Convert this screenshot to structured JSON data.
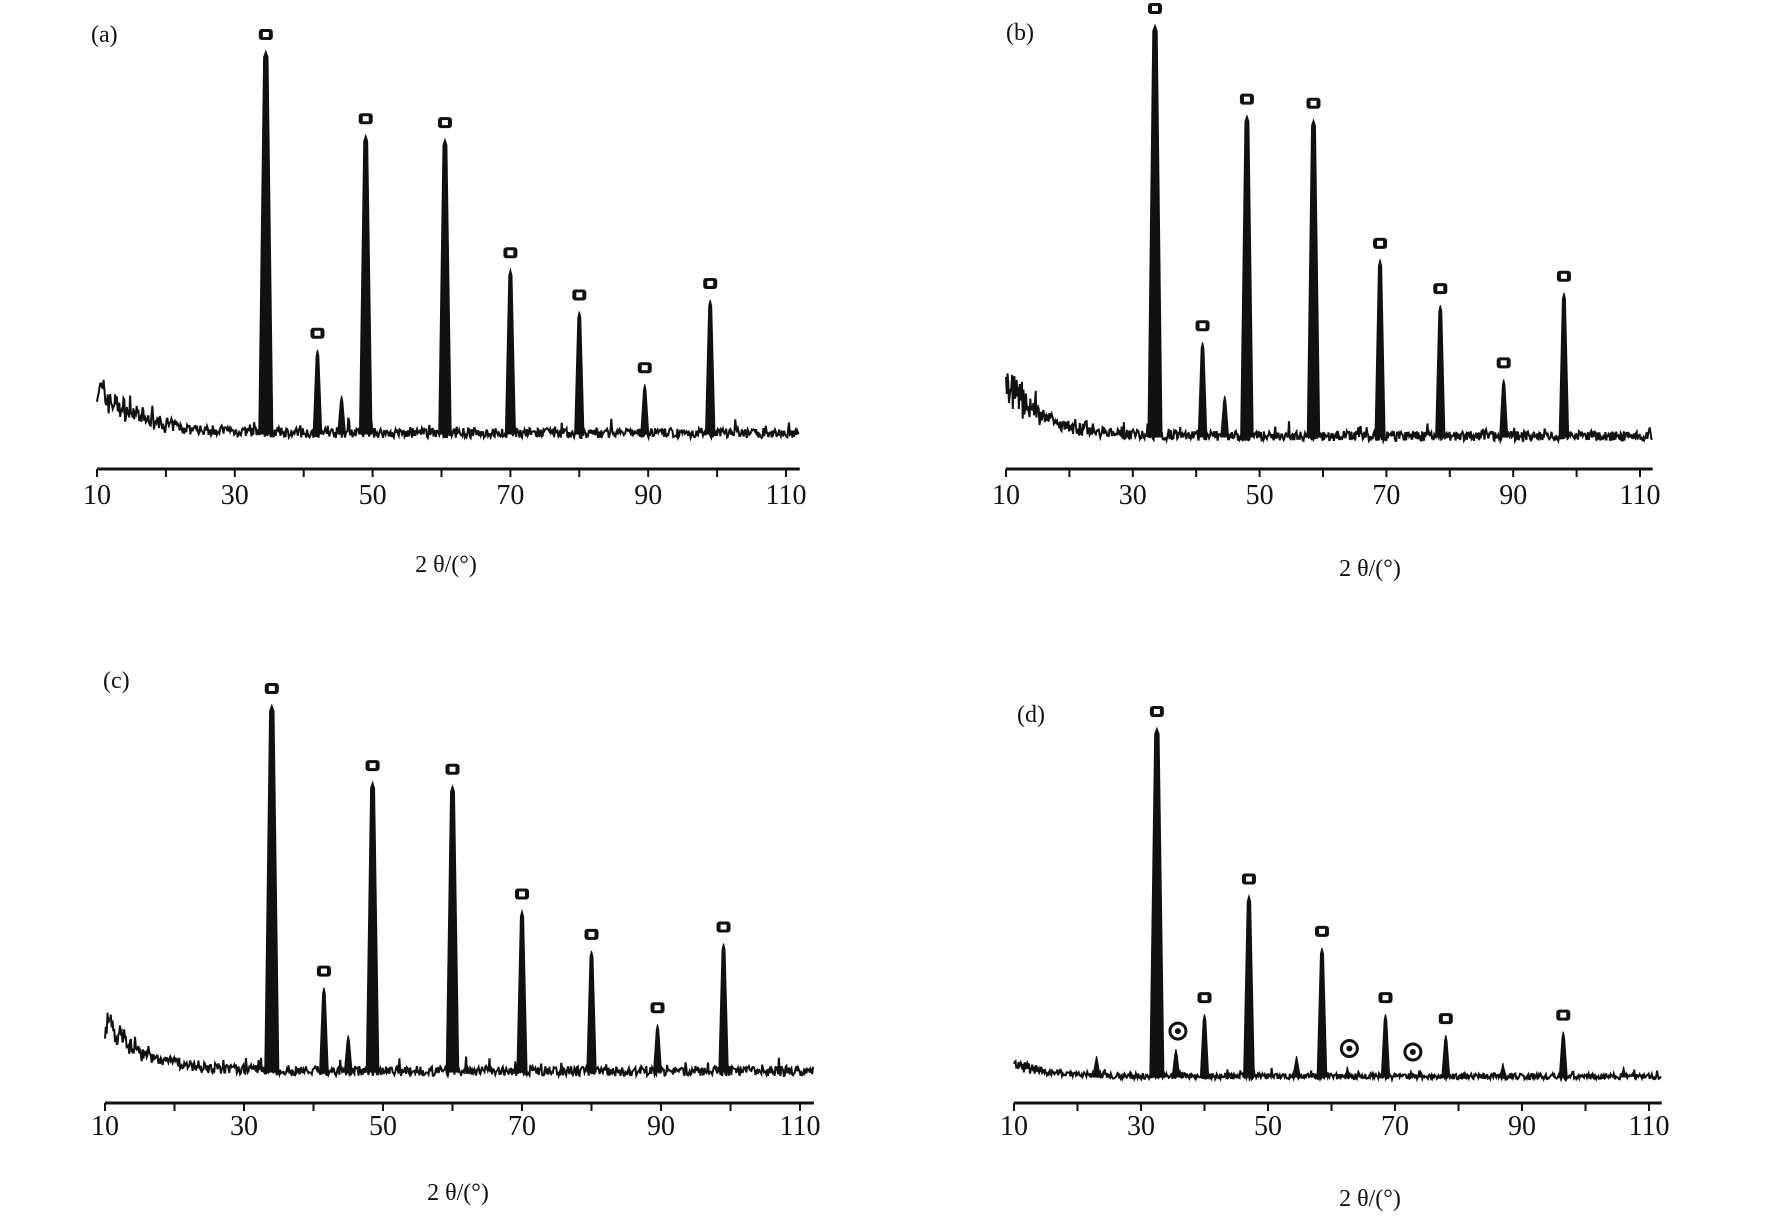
{
  "chart_data": [
    {
      "type": "line",
      "panel_label": "(a)",
      "xlabel": "2 θ/(°)",
      "ylabel": "",
      "xlim": [
        10,
        112
      ],
      "x_ticks": [
        "10",
        "30",
        "50",
        "70",
        "90",
        "110"
      ],
      "y_units": "relative intensity (no axis shown)",
      "peaks": [
        {
          "x": 34.5,
          "y": 100,
          "marker": "square"
        },
        {
          "x": 42,
          "y": 22,
          "marker": "square"
        },
        {
          "x": 45.5,
          "y": 10,
          "marker": "none"
        },
        {
          "x": 49,
          "y": 78,
          "marker": "square"
        },
        {
          "x": 60.5,
          "y": 77,
          "marker": "square"
        },
        {
          "x": 70,
          "y": 43,
          "marker": "square"
        },
        {
          "x": 80,
          "y": 32,
          "marker": "square"
        },
        {
          "x": 89.5,
          "y": 13,
          "marker": "square"
        },
        {
          "x": 99,
          "y": 35,
          "marker": "square"
        }
      ]
    },
    {
      "type": "line",
      "panel_label": "(b)",
      "xlabel": "2 θ/(°)",
      "ylabel": "",
      "xlim": [
        10,
        112
      ],
      "x_ticks": [
        "10",
        "30",
        "50",
        "70",
        "90",
        "110"
      ],
      "y_units": "relative intensity (no axis shown)",
      "peaks": [
        {
          "x": 33.5,
          "y": 100,
          "marker": "square"
        },
        {
          "x": 41,
          "y": 23,
          "marker": "square"
        },
        {
          "x": 44.5,
          "y": 10,
          "marker": "none"
        },
        {
          "x": 48,
          "y": 78,
          "marker": "square"
        },
        {
          "x": 58.5,
          "y": 77,
          "marker": "square"
        },
        {
          "x": 69,
          "y": 43,
          "marker": "square"
        },
        {
          "x": 78.5,
          "y": 32,
          "marker": "square"
        },
        {
          "x": 88.5,
          "y": 14,
          "marker": "square"
        },
        {
          "x": 98,
          "y": 35,
          "marker": "square"
        }
      ]
    },
    {
      "type": "line",
      "panel_label": "(c)",
      "xlabel": "2 θ/(°)",
      "ylabel": "",
      "xlim": [
        10,
        112
      ],
      "x_ticks": [
        "10",
        "30",
        "50",
        "70",
        "90",
        "110"
      ],
      "y_units": "relative intensity (no axis shown)",
      "peaks": [
        {
          "x": 34,
          "y": 100,
          "marker": "square"
        },
        {
          "x": 41.5,
          "y": 23,
          "marker": "square"
        },
        {
          "x": 45,
          "y": 10,
          "marker": "none"
        },
        {
          "x": 48.5,
          "y": 79,
          "marker": "square"
        },
        {
          "x": 60,
          "y": 78,
          "marker": "square"
        },
        {
          "x": 70,
          "y": 44,
          "marker": "square"
        },
        {
          "x": 80,
          "y": 33,
          "marker": "square"
        },
        {
          "x": 89.5,
          "y": 13,
          "marker": "square"
        },
        {
          "x": 99,
          "y": 35,
          "marker": "square"
        }
      ]
    },
    {
      "type": "line",
      "panel_label": "(d)",
      "xlabel": "2 θ/(°)",
      "ylabel": "",
      "xlim": [
        10,
        112
      ],
      "x_ticks": [
        "10",
        "30",
        "50",
        "70",
        "90",
        "110"
      ],
      "y_units": "relative intensity (no axis shown)",
      "peaks": [
        {
          "x": 23,
          "y": 6,
          "marker": "none"
        },
        {
          "x": 32.5,
          "y": 100,
          "marker": "square"
        },
        {
          "x": 35.5,
          "y": 8,
          "marker": "circle"
        },
        {
          "x": 40,
          "y": 18,
          "marker": "square"
        },
        {
          "x": 47,
          "y": 52,
          "marker": "square"
        },
        {
          "x": 54.5,
          "y": 6,
          "marker": "none"
        },
        {
          "x": 58.5,
          "y": 37,
          "marker": "square"
        },
        {
          "x": 62.5,
          "y": 3,
          "marker": "circle"
        },
        {
          "x": 68.5,
          "y": 18,
          "marker": "square"
        },
        {
          "x": 72.5,
          "y": 2,
          "marker": "circle"
        },
        {
          "x": 78,
          "y": 12,
          "marker": "square"
        },
        {
          "x": 87,
          "y": 4,
          "marker": "none"
        },
        {
          "x": 96.5,
          "y": 13,
          "marker": "square"
        },
        {
          "x": 106,
          "y": 3,
          "marker": "none"
        }
      ]
    }
  ]
}
